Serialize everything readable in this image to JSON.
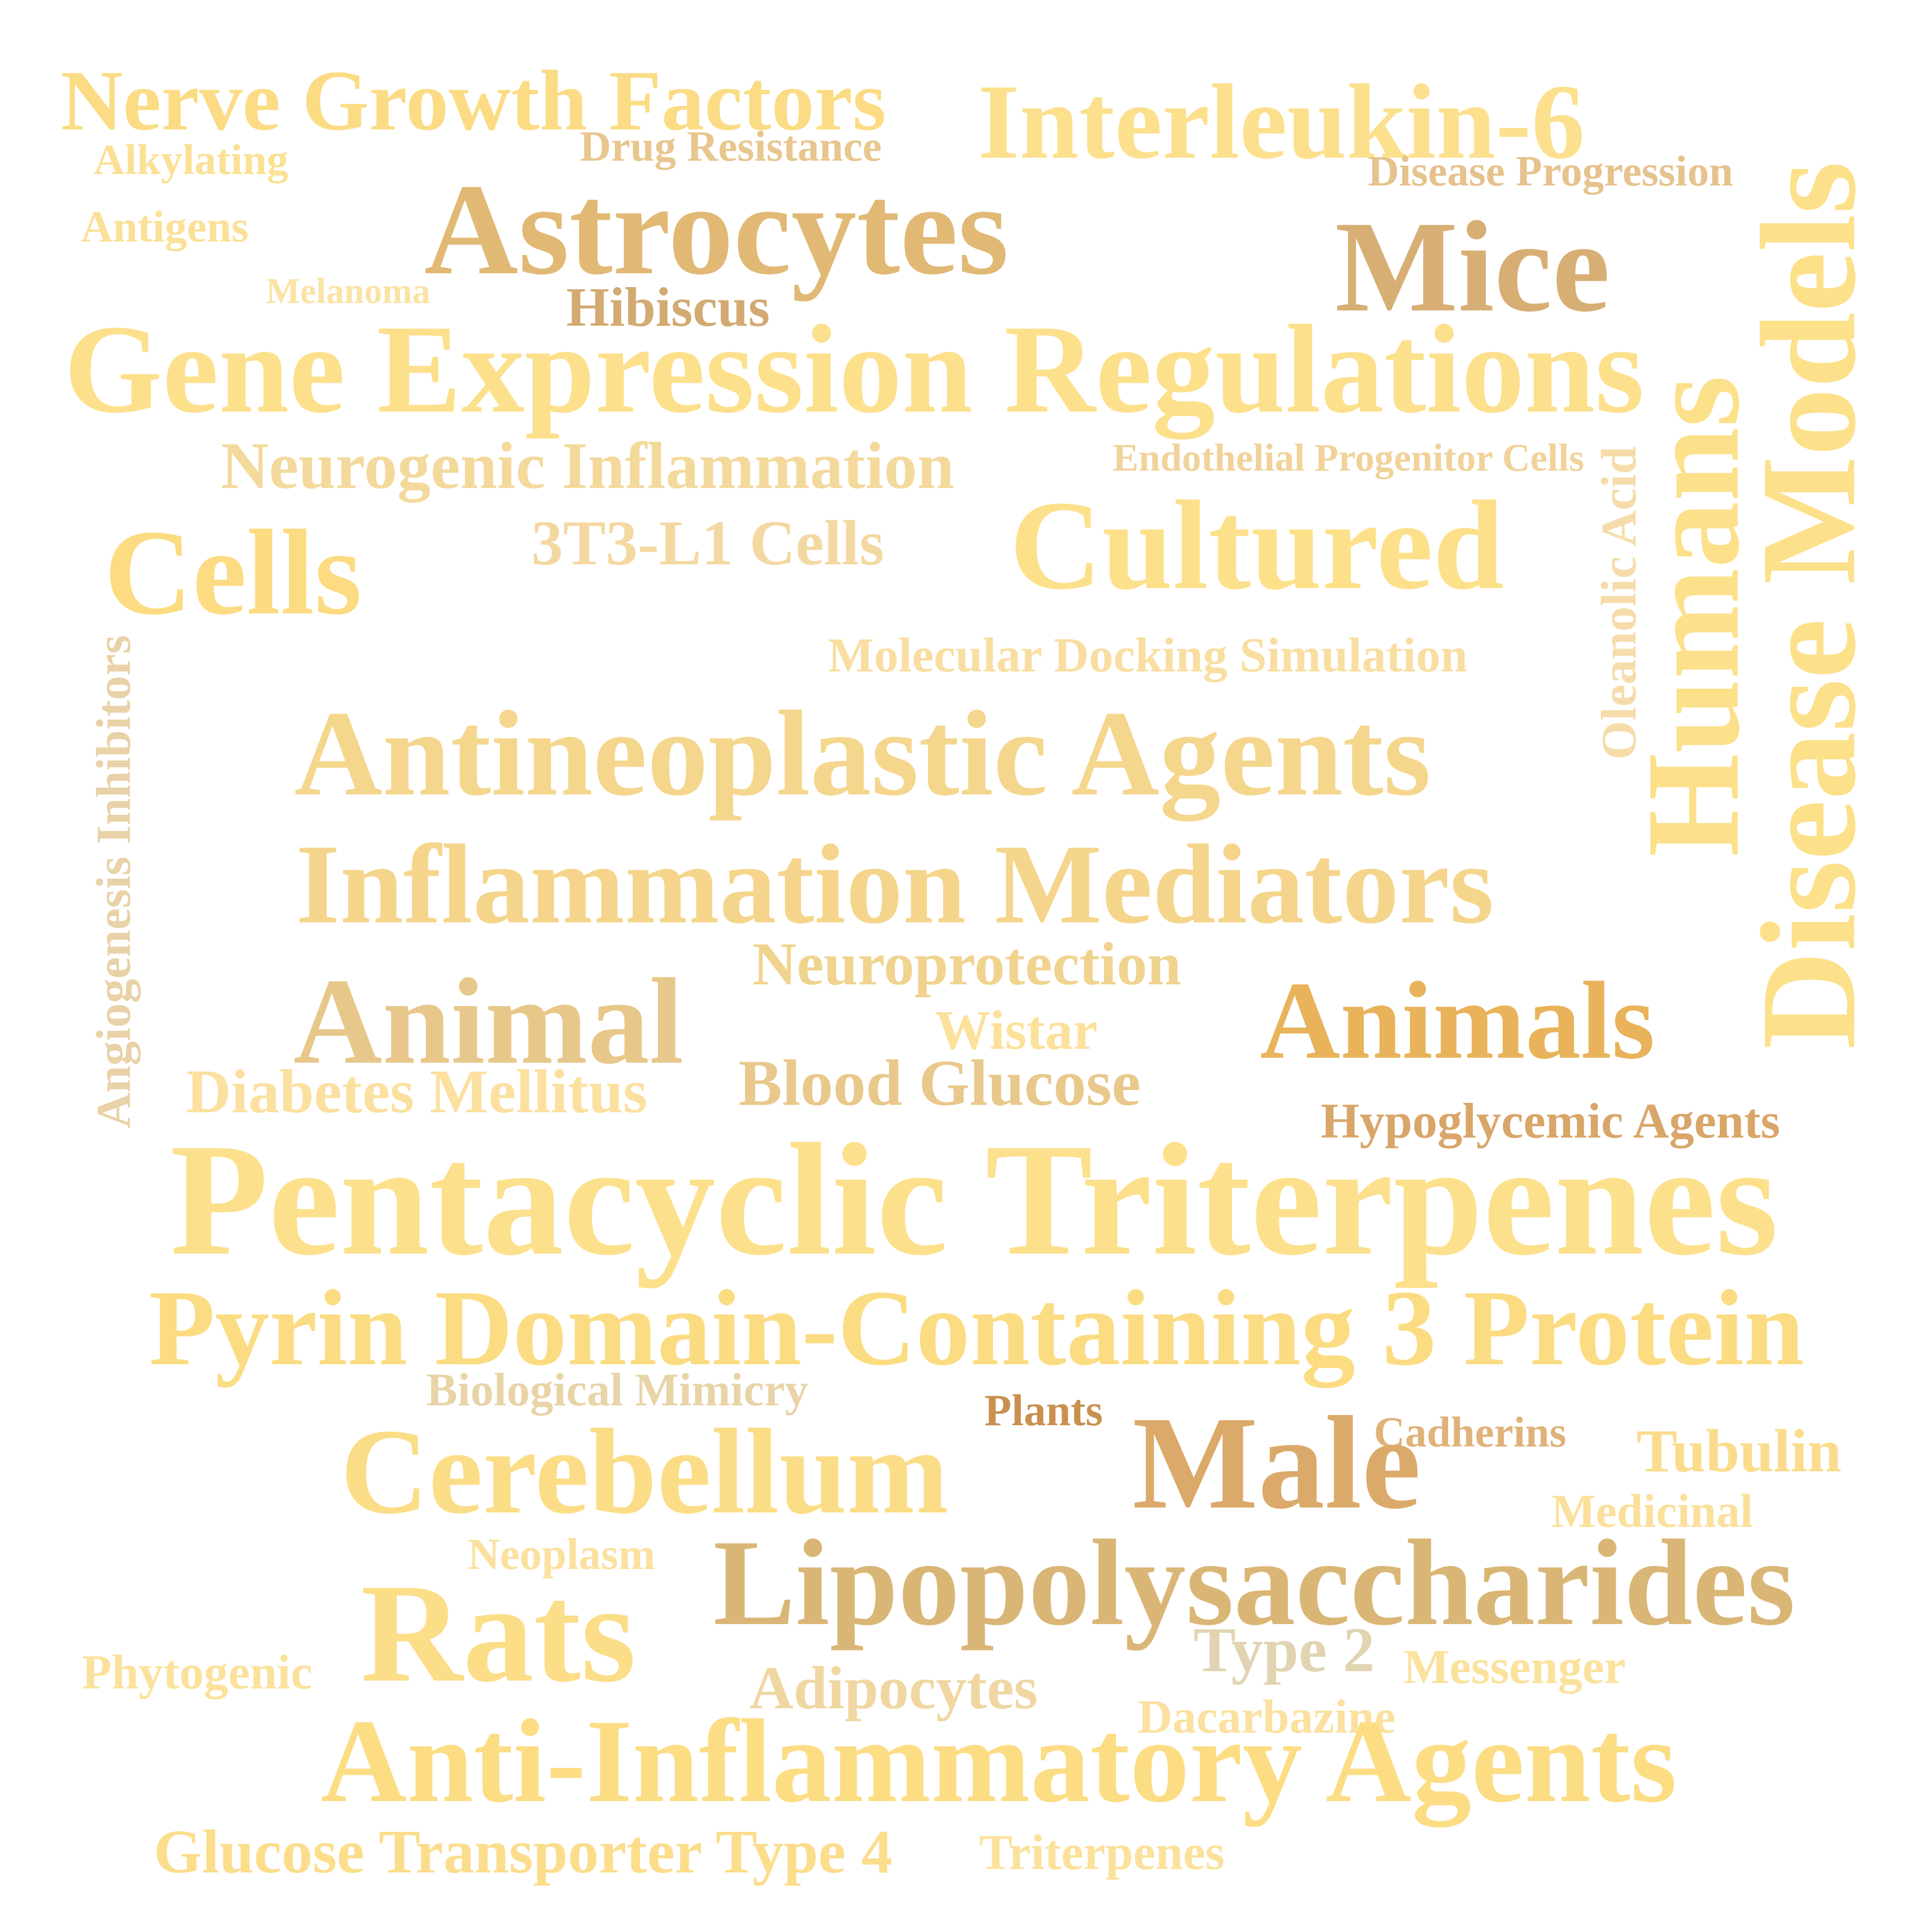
{
  "words": [
    {
      "text": "Nerve Growth Factors",
      "color": "#fbdc85"
    },
    {
      "text": "Interleukin-6",
      "color": "#fce08e"
    },
    {
      "text": "Alkylating",
      "color": "#fbe195"
    },
    {
      "text": "Drug Resistance",
      "color": "#e8c68e"
    },
    {
      "text": "Disease Progression",
      "color": "#e6c28d"
    },
    {
      "text": "Astrocytes",
      "color": "#e1b975"
    },
    {
      "text": "Antigens",
      "color": "#fbe097"
    },
    {
      "text": "Mice",
      "color": "#d7af74"
    },
    {
      "text": "Melanoma",
      "color": "#fbe3a5"
    },
    {
      "text": "Hibiscus",
      "color": "#d2aa72"
    },
    {
      "text": "Gene Expression Regulations",
      "color": "#fde08c"
    },
    {
      "text": "Neurogenic Inflammation",
      "color": "#f4d99c"
    },
    {
      "text": "Endothelial Progenitor Cells",
      "color": "#f0d29a"
    },
    {
      "text": "Cells",
      "color": "#fcdb82"
    },
    {
      "text": "3T3-L1 Cells",
      "color": "#f4d8a2"
    },
    {
      "text": "Cultured",
      "color": "#fde08a"
    },
    {
      "text": "Molecular Docking Simulation",
      "color": "#f9dea1"
    },
    {
      "text": "Antineoplastic Agents",
      "color": "#f5d68d"
    },
    {
      "text": "Inflammation Mediators",
      "color": "#f5d58b"
    },
    {
      "text": "Neuroprotection",
      "color": "#f0d38f"
    },
    {
      "text": "Animal",
      "color": "#e8c78a"
    },
    {
      "text": "Animals",
      "color": "#e8b35a"
    },
    {
      "text": "Wistar",
      "color": "#fce19a"
    },
    {
      "text": "Diabetes Mellitus",
      "color": "#fbe0a0"
    },
    {
      "text": "Blood Glucose",
      "color": "#e9c88c"
    },
    {
      "text": "Hypoglycemic Agents",
      "color": "#d9a66a"
    },
    {
      "text": "Pentacyclic Triterpenes",
      "color": "#fde08c"
    },
    {
      "text": "Pyrin Domain-Containing 3 Protein",
      "color": "#fcdc82"
    },
    {
      "text": "Biological Mimicry",
      "color": "#e9d4a8"
    },
    {
      "text": "Plants",
      "color": "#c99050"
    },
    {
      "text": "Cadherins",
      "color": "#e0b27a"
    },
    {
      "text": "Tubulin",
      "color": "#fbdc8c"
    },
    {
      "text": "Cerebellum",
      "color": "#fcdd87"
    },
    {
      "text": "Male",
      "color": "#dba96a"
    },
    {
      "text": "Medicinal",
      "color": "#fbe09c"
    },
    {
      "text": "Neoplasm",
      "color": "#fbe19f"
    },
    {
      "text": "Lipopolysaccharides",
      "color": "#dab676"
    },
    {
      "text": "Rats",
      "color": "#fcdd88"
    },
    {
      "text": "Type 2",
      "color": "#e2d4b2"
    },
    {
      "text": "Messenger",
      "color": "#fbe29c"
    },
    {
      "text": "Phytogenic",
      "color": "#fbe29c"
    },
    {
      "text": "Adipocytes",
      "color": "#f0d7a2"
    },
    {
      "text": "Dacarbazine",
      "color": "#fbe1a0"
    },
    {
      "text": "Anti-Inflammatory Agents",
      "color": "#fcdd84"
    },
    {
      "text": "Glucose Transporter Type 4",
      "color": "#fcdd8c"
    },
    {
      "text": "Triterpenes",
      "color": "#fce19b"
    },
    {
      "text": "Angiogenesis Inhibitors",
      "color": "#e9d2a8"
    },
    {
      "text": "Oleanolic Acid",
      "color": "#f5dcaa"
    },
    {
      "text": "Humans",
      "color": "#fce08a"
    },
    {
      "text": "Disease Models",
      "color": "#fde08a"
    }
  ]
}
